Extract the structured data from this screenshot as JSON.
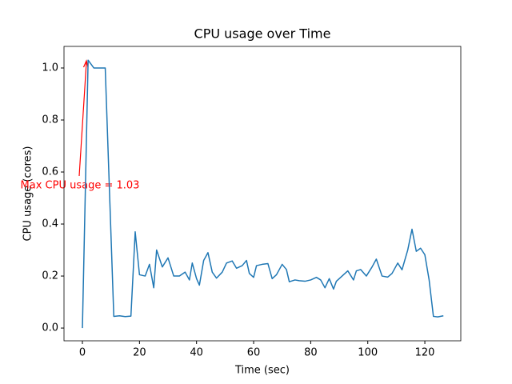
{
  "chart_data": {
    "type": "line",
    "title": "CPU usage over Time",
    "x_label": "Time (sec)",
    "y_label": "CPU usage (cores)",
    "annotation": "Max CPU usage = 1.03",
    "x": [
      0,
      2,
      4,
      6,
      8,
      11,
      13,
      15,
      17,
      18.5,
      20,
      22,
      23.5,
      25,
      26,
      28,
      30,
      32,
      34,
      36,
      37.5,
      38.5,
      40,
      41,
      42.5,
      44,
      45.5,
      47,
      49,
      50.5,
      52.5,
      54,
      56,
      57.5,
      58.5,
      60,
      61,
      63,
      65,
      66.5,
      68,
      70,
      71.5,
      72.5,
      74.5,
      76,
      78,
      80,
      82,
      83.5,
      85,
      86.5,
      88,
      89,
      91,
      93,
      95,
      96,
      97.5,
      99.5,
      101.5,
      103,
      105,
      107,
      108.5,
      110.5,
      112,
      114,
      115.5,
      117,
      118.5,
      120,
      121.5,
      123,
      124.5,
      126.5
    ],
    "series": [
      {
        "color": "#1f77b4",
        "values": [
          0.0,
          1.03,
          1.0,
          1.0,
          1.0,
          0.045,
          0.047,
          0.044,
          0.046,
          0.37,
          0.205,
          0.2,
          0.245,
          0.155,
          0.3,
          0.235,
          0.27,
          0.2,
          0.2,
          0.215,
          0.185,
          0.25,
          0.19,
          0.165,
          0.26,
          0.29,
          0.215,
          0.192,
          0.215,
          0.25,
          0.258,
          0.23,
          0.24,
          0.26,
          0.21,
          0.195,
          0.24,
          0.245,
          0.248,
          0.19,
          0.205,
          0.245,
          0.225,
          0.178,
          0.185,
          0.182,
          0.18,
          0.185,
          0.195,
          0.185,
          0.155,
          0.19,
          0.15,
          0.18,
          0.2,
          0.22,
          0.185,
          0.22,
          0.225,
          0.2,
          0.235,
          0.265,
          0.2,
          0.196,
          0.21,
          0.25,
          0.224,
          0.3,
          0.38,
          0.295,
          0.307,
          0.282,
          0.185,
          0.045,
          0.043,
          0.047
        ]
      }
    ],
    "xlim": [
      -6.45,
      132.6
    ],
    "ylim": [
      -0.049,
      1.083
    ],
    "xticks": [
      0,
      20,
      40,
      60,
      80,
      100,
      120
    ],
    "yticks": [
      {
        "value": 0,
        "label": "0.0"
      },
      0.2,
      0.4,
      0.6,
      0.8,
      {
        "value": 1,
        "label": "1.0"
      }
    ]
  }
}
